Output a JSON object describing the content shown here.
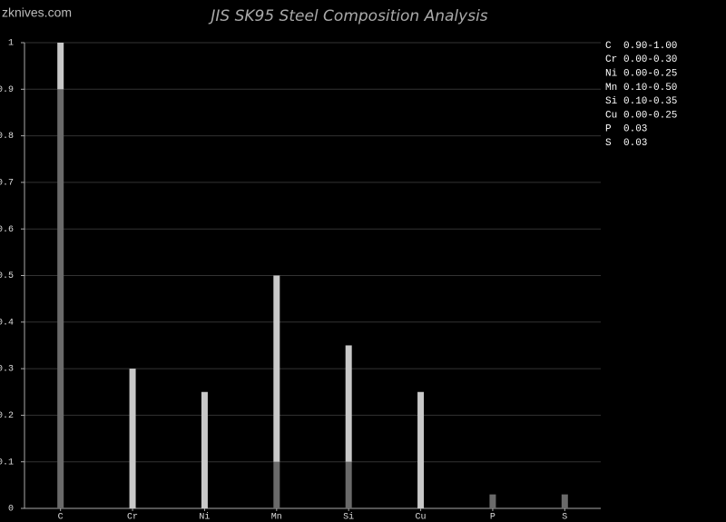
{
  "watermark": "zknives.com",
  "chart_data": {
    "type": "range-bar",
    "title": "JIS SK95 Steel Composition Analysis",
    "categories": [
      "C",
      "Cr",
      "Ni",
      "Mn",
      "Si",
      "Cu",
      "P",
      "S"
    ],
    "min": [
      0.9,
      0,
      0,
      0.1,
      0.1,
      0,
      null,
      null
    ],
    "max": [
      1,
      0.3,
      0.25,
      0.5,
      0.35,
      0.25,
      0.03,
      0.03
    ],
    "range_labels": [
      "0.90-1.00",
      "0.00-0.30",
      "0.00-0.25",
      "0.10-0.50",
      "0.10-0.35",
      "0.00-0.25",
      "0.03",
      "0.03"
    ],
    "color": "#c8c8c8",
    "base_color": "#6a6a6a",
    "ylim": [
      0,
      1
    ],
    "yticks": [
      0,
      0.1,
      0.2,
      0.3,
      0.4,
      0.5,
      0.6,
      0.7,
      0.8,
      0.9,
      1
    ],
    "grid": true,
    "legend": "right"
  }
}
